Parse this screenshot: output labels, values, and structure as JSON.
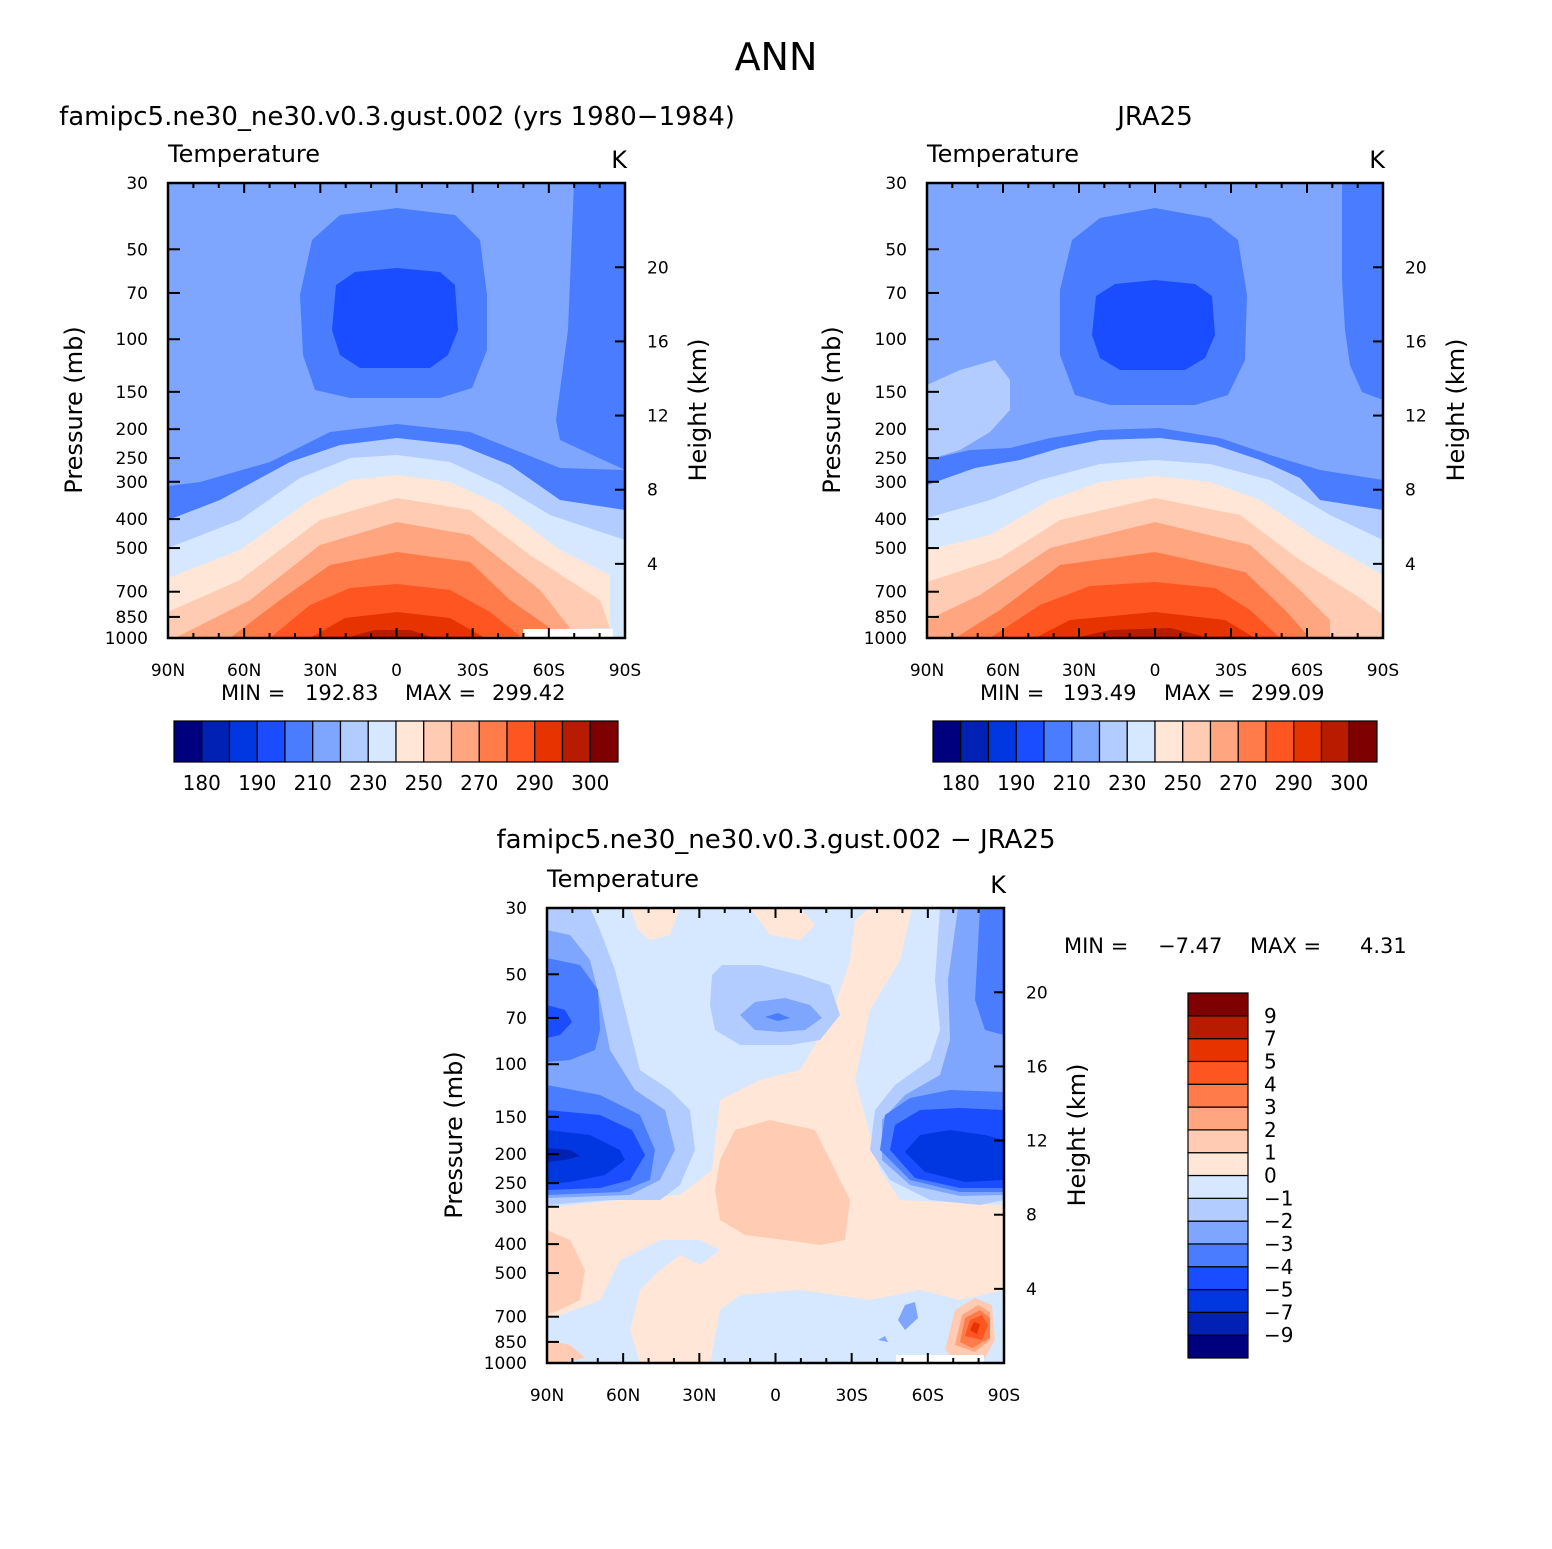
{
  "figure": {
    "title": "ANN"
  },
  "colors": {
    "levels": [
      "#00007f",
      "#0021b3",
      "#0037e0",
      "#1a4dff",
      "#4a7cff",
      "#7fa6ff",
      "#b3ccff",
      "#d6e8ff",
      "#ffe6d6",
      "#ffccb3",
      "#ffa680",
      "#ff7b4a",
      "#ff5521",
      "#e63300",
      "#b81c00",
      "#7f0000"
    ]
  },
  "chart_data": [
    {
      "type": "heatmap",
      "title": "famipc5.ne30_ne30.v0.3.gust.002 (yrs 1980−1984)",
      "variable": "Temperature",
      "units": "K",
      "xlabel": "",
      "ylabel": "Pressure (mb)",
      "ylabel_right": "Height (km)",
      "x_ticks": [
        "90N",
        "60N",
        "30N",
        "0",
        "30S",
        "60S",
        "90S"
      ],
      "y_ticks": [
        "30",
        "50",
        "70",
        "100",
        "150",
        "200",
        "250",
        "300",
        "400",
        "500",
        "700",
        "850",
        "1000"
      ],
      "y_right_ticks": [
        "20",
        "16",
        "12",
        "8",
        "4"
      ],
      "min_label": "MIN =",
      "min_value": "192.83",
      "max_label": "MAX =",
      "max_value": "299.42",
      "colorbar_labels": [
        "180",
        "190",
        "210",
        "230",
        "250",
        "270",
        "290",
        "300"
      ]
    },
    {
      "type": "heatmap",
      "title": "JRA25",
      "variable": "Temperature",
      "units": "K",
      "xlabel": "",
      "ylabel": "Pressure (mb)",
      "ylabel_right": "Height (km)",
      "x_ticks": [
        "90N",
        "60N",
        "30N",
        "0",
        "30S",
        "60S",
        "90S"
      ],
      "y_ticks": [
        "30",
        "50",
        "70",
        "100",
        "150",
        "200",
        "250",
        "300",
        "400",
        "500",
        "700",
        "850",
        "1000"
      ],
      "y_right_ticks": [
        "20",
        "16",
        "12",
        "8",
        "4"
      ],
      "min_label": "MIN =",
      "min_value": "193.49",
      "max_label": "MAX =",
      "max_value": "299.09",
      "colorbar_labels": [
        "180",
        "190",
        "210",
        "230",
        "250",
        "270",
        "290",
        "300"
      ]
    },
    {
      "type": "heatmap",
      "title": "famipc5.ne30_ne30.v0.3.gust.002 − JRA25",
      "variable": "Temperature",
      "units": "K",
      "xlabel": "",
      "ylabel": "Pressure (mb)",
      "ylabel_right": "Height (km)",
      "x_ticks": [
        "90N",
        "60N",
        "30N",
        "0",
        "30S",
        "60S",
        "90S"
      ],
      "y_ticks": [
        "30",
        "50",
        "70",
        "100",
        "150",
        "200",
        "250",
        "300",
        "400",
        "500",
        "700",
        "850",
        "1000"
      ],
      "y_right_ticks": [
        "20",
        "16",
        "12",
        "8",
        "4"
      ],
      "min_label": "MIN =",
      "min_value": "−7.47",
      "max_label": "MAX =",
      "max_value": "4.31",
      "colorbar_labels": [
        "9",
        "7",
        "5",
        "4",
        "3",
        "2",
        "1",
        "0",
        "−1",
        "−2",
        "−3",
        "−4",
        "−5",
        "−7",
        "−9"
      ]
    }
  ]
}
